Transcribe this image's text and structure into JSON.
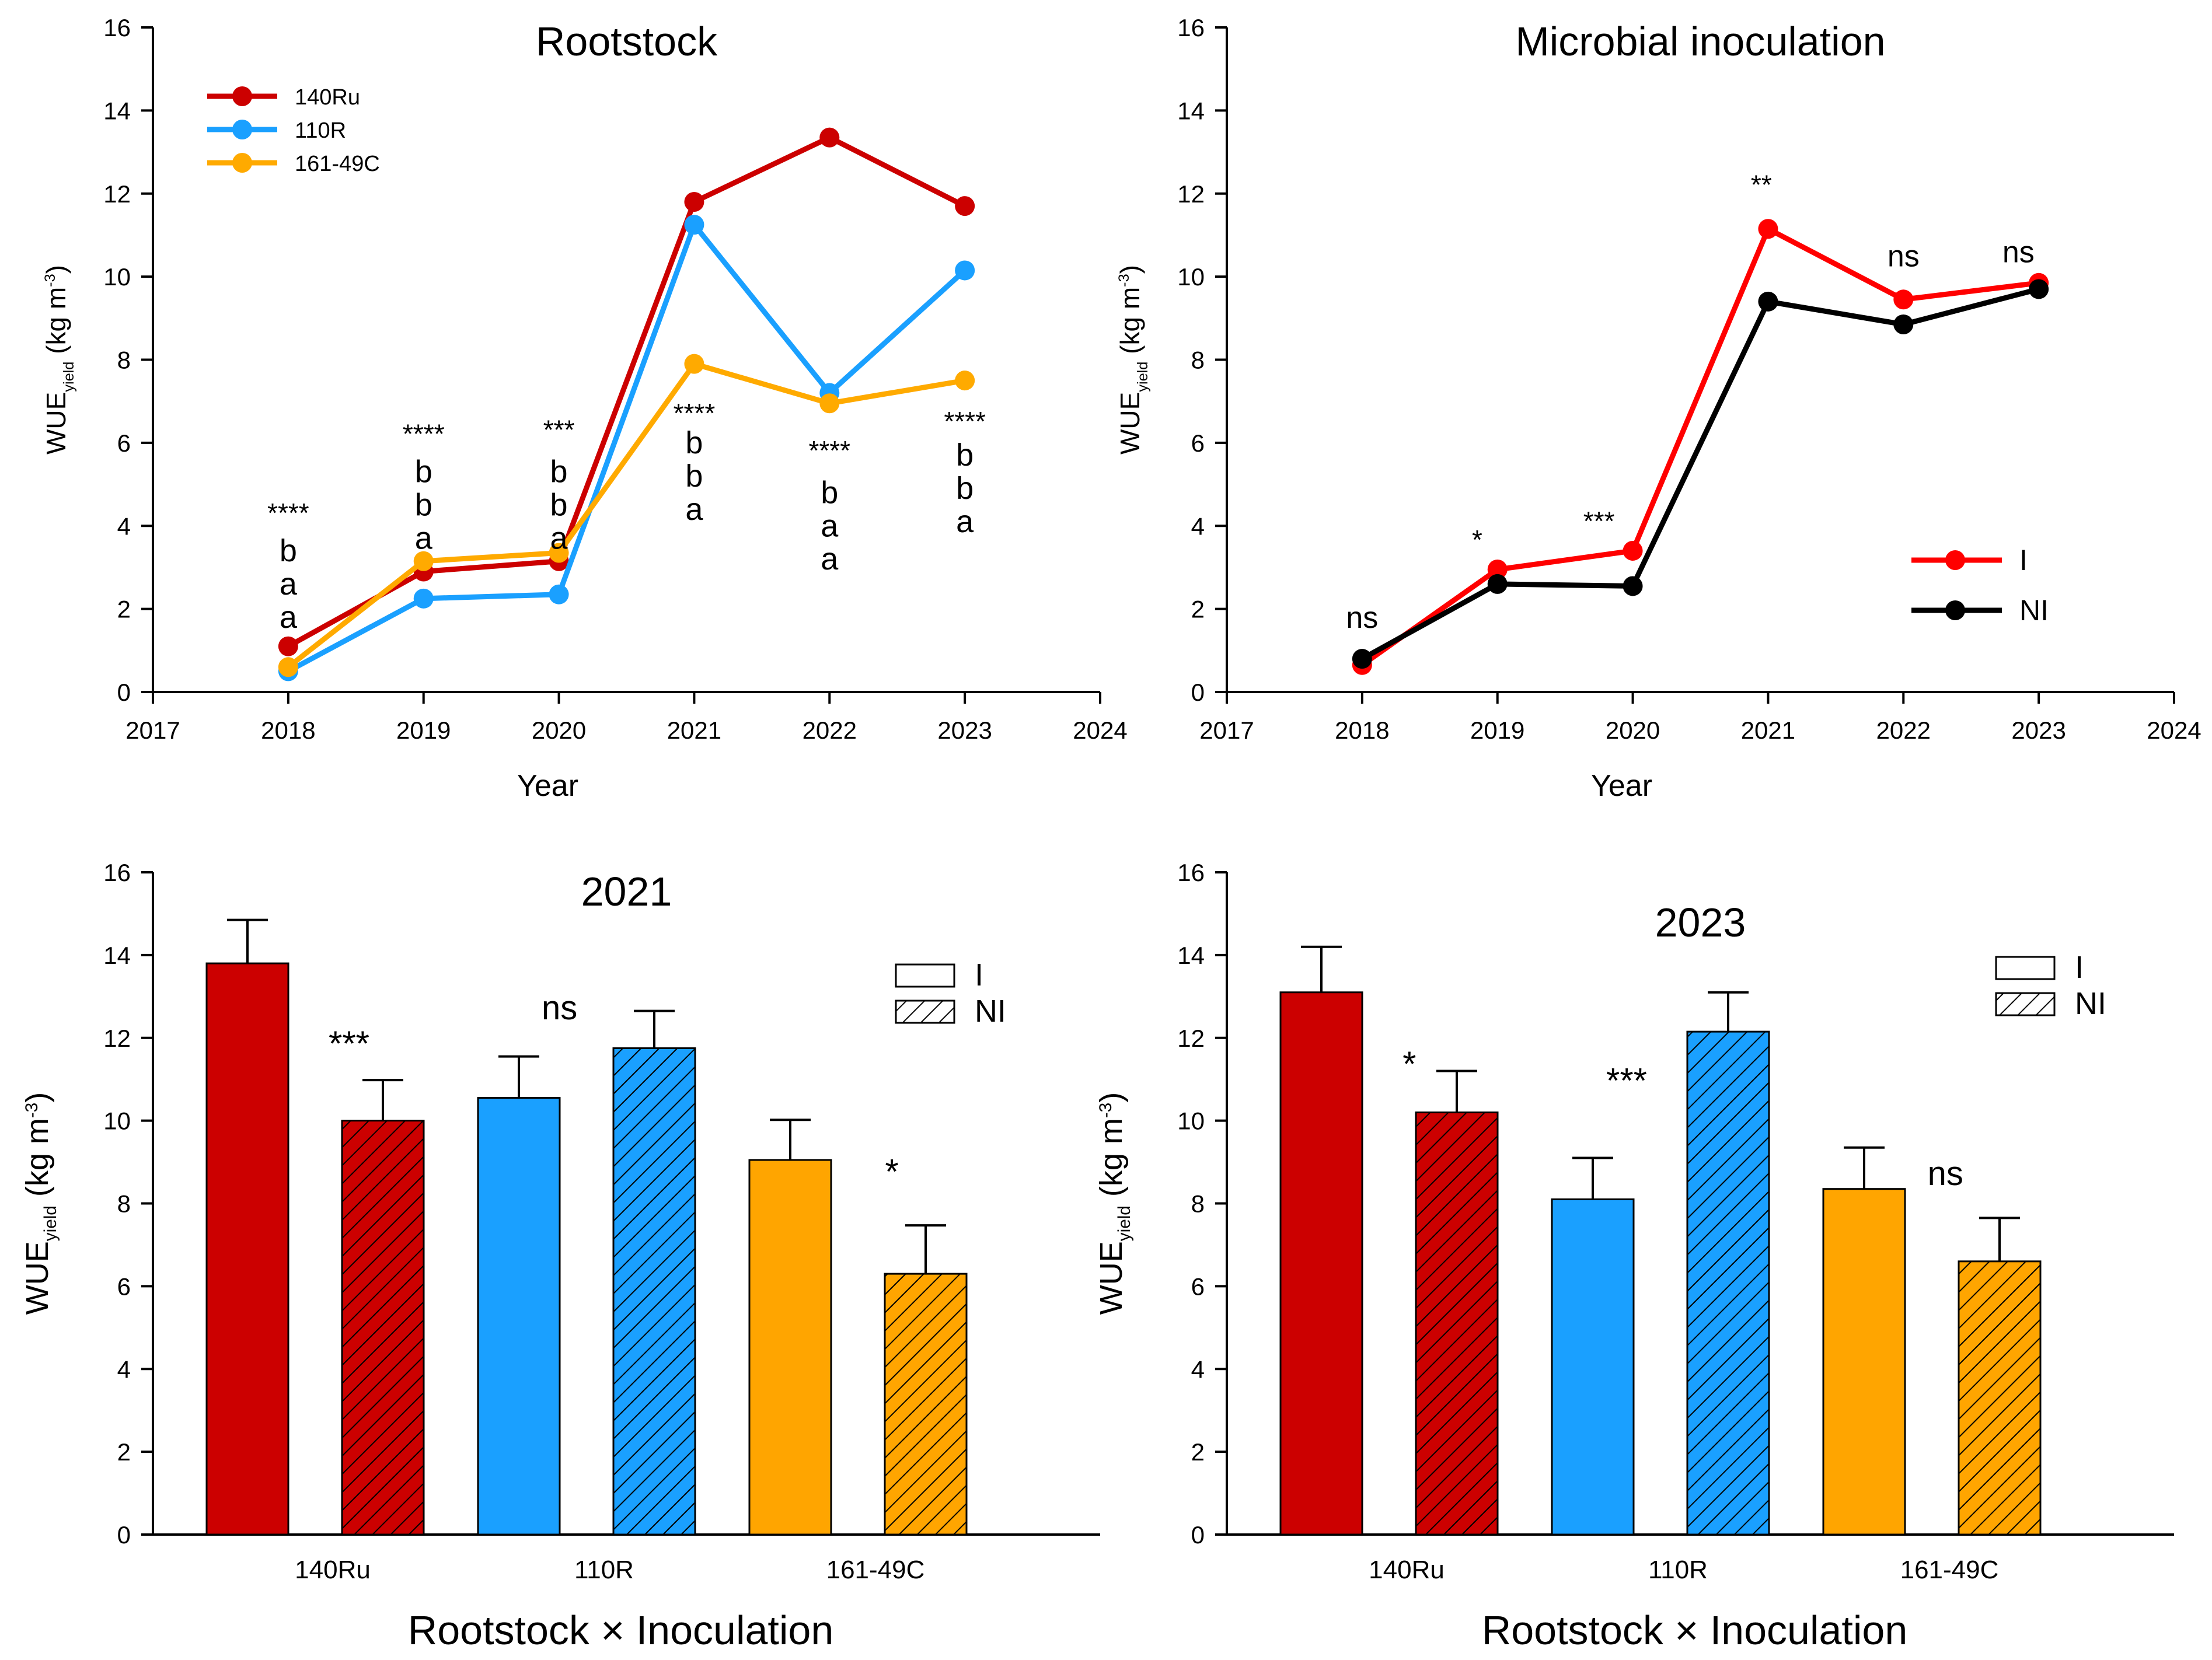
{
  "chart_data": [
    {
      "type": "line",
      "title": "Rootstock",
      "xlabel": "Year",
      "ylabel": "WUE",
      "ylabel_sub": "yield",
      "ylabel_unit": "(kg m",
      "ylabel_exp": "-3",
      "xlim": [
        2017,
        2024
      ],
      "ylim": [
        0,
        16
      ],
      "xticks": [
        "2017",
        "2018",
        "2019",
        "2020",
        "2021",
        "2022",
        "2023",
        "2024"
      ],
      "yticks": [
        "0",
        "2",
        "4",
        "6",
        "8",
        "10",
        "12",
        "14",
        "16"
      ],
      "x": [
        2018,
        2019,
        2020,
        2021,
        2022,
        2023
      ],
      "series": [
        {
          "name": "140Ru",
          "color": "#cc0000",
          "values": [
            1.1,
            2.9,
            3.15,
            11.8,
            13.35,
            11.7
          ]
        },
        {
          "name": "110R",
          "color": "#1aa0ff",
          "values": [
            0.5,
            2.25,
            2.35,
            11.25,
            7.2,
            10.15
          ]
        },
        {
          "name": "161-49C",
          "color": "#ffaa00",
          "values": [
            0.6,
            3.15,
            3.35,
            7.9,
            6.95,
            7.5
          ]
        }
      ],
      "legend_position": "top-left",
      "annotations": [
        {
          "x": 2018,
          "y": 4.4,
          "text": "****"
        },
        {
          "x": 2018,
          "y": 3.4,
          "text": "b"
        },
        {
          "x": 2018,
          "y": 2.6,
          "text": "a"
        },
        {
          "x": 2018,
          "y": 1.8,
          "text": "a"
        },
        {
          "x": 2019,
          "y": 6.3,
          "text": "****"
        },
        {
          "x": 2019,
          "y": 5.3,
          "text": "b"
        },
        {
          "x": 2019,
          "y": 4.5,
          "text": "b"
        },
        {
          "x": 2019,
          "y": 3.7,
          "text": "a"
        },
        {
          "x": 2020,
          "y": 6.4,
          "text": "***"
        },
        {
          "x": 2020,
          "y": 5.3,
          "text": "b"
        },
        {
          "x": 2020,
          "y": 4.5,
          "text": "b"
        },
        {
          "x": 2020,
          "y": 3.7,
          "text": "a"
        },
        {
          "x": 2021,
          "y": 6.8,
          "text": "****"
        },
        {
          "x": 2021,
          "y": 6.0,
          "text": "b"
        },
        {
          "x": 2021,
          "y": 5.2,
          "text": "b"
        },
        {
          "x": 2021,
          "y": 4.4,
          "text": "a"
        },
        {
          "x": 2022,
          "y": 5.9,
          "text": "****"
        },
        {
          "x": 2022,
          "y": 4.8,
          "text": "b"
        },
        {
          "x": 2022,
          "y": 4.0,
          "text": "a"
        },
        {
          "x": 2022,
          "y": 3.2,
          "text": "a"
        },
        {
          "x": 2023,
          "y": 6.6,
          "text": "****"
        },
        {
          "x": 2023,
          "y": 5.7,
          "text": "b"
        },
        {
          "x": 2023,
          "y": 4.9,
          "text": "b"
        },
        {
          "x": 2023,
          "y": 4.1,
          "text": "a"
        }
      ]
    },
    {
      "type": "line",
      "title": "Microbial inoculation",
      "xlabel": "Year",
      "ylabel": "WUE",
      "ylabel_sub": "yield",
      "ylabel_unit": "(kg m",
      "ylabel_exp": "-3",
      "xlim": [
        2017,
        2024
      ],
      "ylim": [
        0,
        16
      ],
      "xticks": [
        "2017",
        "2018",
        "2019",
        "2020",
        "2021",
        "2022",
        "2023",
        "2024"
      ],
      "yticks": [
        "0",
        "2",
        "4",
        "6",
        "8",
        "10",
        "12",
        "14",
        "16"
      ],
      "x": [
        2018,
        2019,
        2020,
        2021,
        2022,
        2023
      ],
      "series": [
        {
          "name": "I",
          "color": "#ff0000",
          "values": [
            0.65,
            2.95,
            3.4,
            11.15,
            9.45,
            9.85
          ]
        },
        {
          "name": "NI",
          "color": "#000000",
          "values": [
            0.8,
            2.6,
            2.55,
            9.4,
            8.85,
            9.7
          ]
        }
      ],
      "legend_position": "right",
      "annotations": [
        {
          "x": 2018,
          "y": 1.8,
          "text": "ns"
        },
        {
          "x": 2018.85,
          "y": 3.75,
          "text": "*"
        },
        {
          "x": 2019.75,
          "y": 4.2,
          "text": "***"
        },
        {
          "x": 2020.95,
          "y": 12.3,
          "text": "**"
        },
        {
          "x": 2022,
          "y": 10.5,
          "text": "ns"
        },
        {
          "x": 2022.85,
          "y": 10.6,
          "text": "ns"
        }
      ]
    },
    {
      "type": "bar",
      "title": "2021",
      "xlabel": "Rootstock × Inoculation",
      "ylabel": "WUE",
      "ylabel_sub": "yield",
      "ylabel_unit": "(kg m",
      "ylabel_exp": "-3",
      "ylim": [
        0,
        16
      ],
      "yticks": [
        "0",
        "2",
        "4",
        "6",
        "8",
        "10",
        "12",
        "14",
        "16"
      ],
      "categories": [
        "140Ru",
        "110R",
        "161-49C"
      ],
      "series": [
        {
          "name": "I",
          "pattern": "solid",
          "values": [
            13.8,
            10.55,
            9.05
          ],
          "errors": [
            1.05,
            1.0,
            0.97
          ]
        },
        {
          "name": "NI",
          "pattern": "hatched",
          "values": [
            10.0,
            11.75,
            6.3
          ],
          "errors": [
            0.98,
            0.9,
            1.17
          ]
        }
      ],
      "colors": [
        "#cc0000",
        "#1aa0ff",
        "#ffa500"
      ],
      "significance": [
        {
          "category": "140Ru",
          "text": "***",
          "y": 12.0
        },
        {
          "category": "110R",
          "text": "ns",
          "y": 12.7
        },
        {
          "category": "161-49C",
          "text": "*",
          "y": 8.9
        }
      ],
      "legend_position": "top-right"
    },
    {
      "type": "bar",
      "title": "2023",
      "xlabel": "Rootstock × Inoculation",
      "ylabel": "WUE",
      "ylabel_sub": "yield",
      "ylabel_unit": "(kg m",
      "ylabel_exp": "-3",
      "ylim": [
        0,
        16
      ],
      "yticks": [
        "0",
        "2",
        "4",
        "6",
        "8",
        "10",
        "12",
        "14",
        "16"
      ],
      "categories": [
        "140Ru",
        "110R",
        "161-49C"
      ],
      "series": [
        {
          "name": "I",
          "pattern": "solid",
          "values": [
            13.1,
            8.1,
            8.35
          ],
          "errors": [
            1.1,
            1.0,
            1.0
          ]
        },
        {
          "name": "NI",
          "pattern": "hatched",
          "values": [
            10.2,
            12.15,
            6.6
          ],
          "errors": [
            1.0,
            0.95,
            1.05
          ]
        }
      ],
      "colors": [
        "#cc0000",
        "#1aa0ff",
        "#ffa500"
      ],
      "significance": [
        {
          "category": "140Ru",
          "text": "*",
          "y": 11.5
        },
        {
          "category": "110R",
          "text": "***",
          "y": 11.1
        },
        {
          "category": "161-49C",
          "text": "ns",
          "y": 8.7
        }
      ],
      "legend_position": "top-right"
    }
  ]
}
